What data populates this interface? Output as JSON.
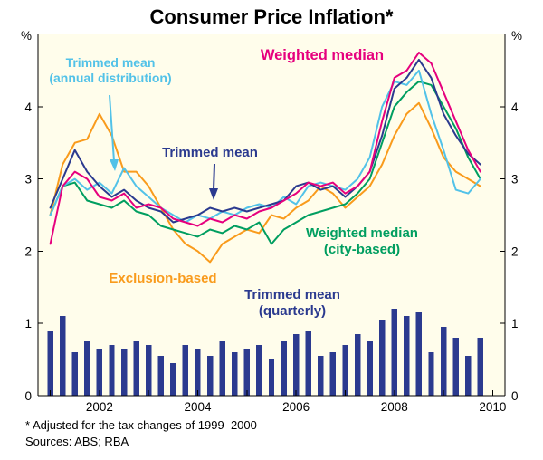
{
  "title": "Consumer Price Inflation*",
  "footnote": "* Adjusted for the tax changes of 1999–2000",
  "sources": "Sources: ABS; RBA",
  "y_axis_unit": "%",
  "annotations": {
    "weighted_median": {
      "line1": "Weighted median"
    },
    "trimmed_mean_annual": {
      "line1": "Trimmed mean",
      "line2": "(annual distribution)"
    },
    "trimmed_mean": {
      "line1": "Trimmed mean"
    },
    "weighted_median_city": {
      "line1": "Weighted median",
      "line2": "(city-based)"
    },
    "exclusion_based": {
      "line1": "Exclusion-based"
    },
    "trimmed_mean_quarterly": {
      "line1": "Trimmed mean",
      "line2": "(quarterly)"
    }
  },
  "chart_data": {
    "type": "line+bar",
    "title": "Consumer Price Inflation*",
    "ylabel": "%",
    "y_range": [
      0,
      5
    ],
    "y_ticks": [
      0,
      1,
      2,
      3,
      4
    ],
    "x_range": [
      2000.75,
      2010.25
    ],
    "x_tick_years": [
      2001,
      2002,
      2003,
      2004,
      2005,
      2006,
      2007,
      2008,
      2009,
      2010
    ],
    "x_tick_labels": [
      "2002",
      "2004",
      "2006",
      "2008",
      "2010"
    ],
    "x_tick_label_years": [
      2002,
      2004,
      2006,
      2008,
      2010
    ],
    "plot_bg": "#FFFDEB",
    "grid": "off",
    "legend": "inline-annotations",
    "x": [
      2001,
      2001.25,
      2001.5,
      2001.75,
      2002,
      2002.25,
      2002.5,
      2002.75,
      2003,
      2003.25,
      2003.5,
      2003.75,
      2004,
      2004.25,
      2004.5,
      2004.75,
      2005,
      2005.25,
      2005.5,
      2005.75,
      2006,
      2006.25,
      2006.5,
      2006.75,
      2007,
      2007.25,
      2007.5,
      2007.75,
      2008,
      2008.25,
      2008.5,
      2008.75,
      2009,
      2009.25,
      2009.5,
      2009.75
    ],
    "series": [
      {
        "key": "weighted_median",
        "name": "Weighted median",
        "type": "line",
        "color": "#E6007E",
        "values": [
          2.1,
          2.9,
          3.1,
          3.0,
          2.75,
          2.7,
          2.8,
          2.6,
          2.65,
          2.6,
          2.45,
          2.4,
          2.35,
          2.45,
          2.4,
          2.5,
          2.45,
          2.55,
          2.6,
          2.7,
          2.8,
          2.95,
          2.9,
          2.95,
          2.8,
          2.9,
          3.1,
          3.8,
          4.4,
          4.5,
          4.75,
          4.6,
          4.2,
          3.8,
          3.4,
          3.1
        ]
      },
      {
        "key": "trimmed_mean",
        "name": "Trimmed mean",
        "type": "line",
        "color": "#2B3A8F",
        "values": [
          2.6,
          3.0,
          3.4,
          3.1,
          2.9,
          2.75,
          2.85,
          2.7,
          2.6,
          2.55,
          2.4,
          2.45,
          2.5,
          2.6,
          2.55,
          2.6,
          2.55,
          2.6,
          2.65,
          2.7,
          2.9,
          2.95,
          2.85,
          2.9,
          2.75,
          2.9,
          3.1,
          3.6,
          4.25,
          4.4,
          4.65,
          4.4,
          3.9,
          3.6,
          3.35,
          3.2
        ]
      },
      {
        "key": "trimmed_mean_annual",
        "name": "Trimmed mean (annual distribution)",
        "type": "line",
        "color": "#52C2E8",
        "values": [
          2.5,
          2.9,
          3.0,
          2.85,
          2.95,
          2.8,
          3.15,
          2.9,
          2.75,
          2.6,
          2.5,
          2.4,
          2.5,
          2.45,
          2.55,
          2.5,
          2.6,
          2.65,
          2.6,
          2.75,
          2.65,
          2.9,
          2.95,
          2.9,
          2.85,
          3.0,
          3.3,
          4.0,
          4.35,
          4.3,
          4.5,
          3.9,
          3.4,
          2.85,
          2.8,
          3.0
        ]
      },
      {
        "key": "weighted_median_city",
        "name": "Weighted median (city-based)",
        "type": "line",
        "color": "#009E60",
        "values": [
          2.5,
          2.9,
          2.95,
          2.7,
          2.65,
          2.6,
          2.7,
          2.55,
          2.5,
          2.35,
          2.3,
          2.25,
          2.2,
          2.3,
          2.25,
          2.35,
          2.3,
          2.4,
          2.1,
          2.3,
          2.4,
          2.5,
          2.55,
          2.6,
          2.65,
          2.8,
          3.0,
          3.5,
          4.0,
          4.2,
          4.35,
          4.3,
          4.0,
          3.7,
          3.3,
          3.0
        ]
      },
      {
        "key": "exclusion_based",
        "name": "Exclusion-based",
        "type": "line",
        "color": "#F99B1C",
        "values": [
          2.5,
          3.2,
          3.5,
          3.55,
          3.9,
          3.6,
          3.1,
          3.1,
          2.9,
          2.6,
          2.3,
          2.1,
          2.0,
          1.85,
          2.1,
          2.2,
          2.3,
          2.25,
          2.5,
          2.45,
          2.6,
          2.7,
          2.9,
          2.8,
          2.6,
          2.75,
          2.9,
          3.2,
          3.6,
          3.9,
          4.05,
          3.7,
          3.3,
          3.1,
          3.0,
          2.9
        ]
      },
      {
        "key": "trimmed_mean_quarterly",
        "name": "Trimmed mean (quarterly)",
        "type": "bar",
        "color": "#2B3A8F",
        "values": [
          0.9,
          1.1,
          0.6,
          0.75,
          0.65,
          0.7,
          0.65,
          0.75,
          0.7,
          0.55,
          0.45,
          0.7,
          0.65,
          0.55,
          0.75,
          0.6,
          0.65,
          0.7,
          0.5,
          0.75,
          0.85,
          0.9,
          0.55,
          0.6,
          0.7,
          0.85,
          0.75,
          1.05,
          1.2,
          1.1,
          1.15,
          0.6,
          0.95,
          0.8,
          0.55,
          0.8
        ]
      }
    ]
  }
}
